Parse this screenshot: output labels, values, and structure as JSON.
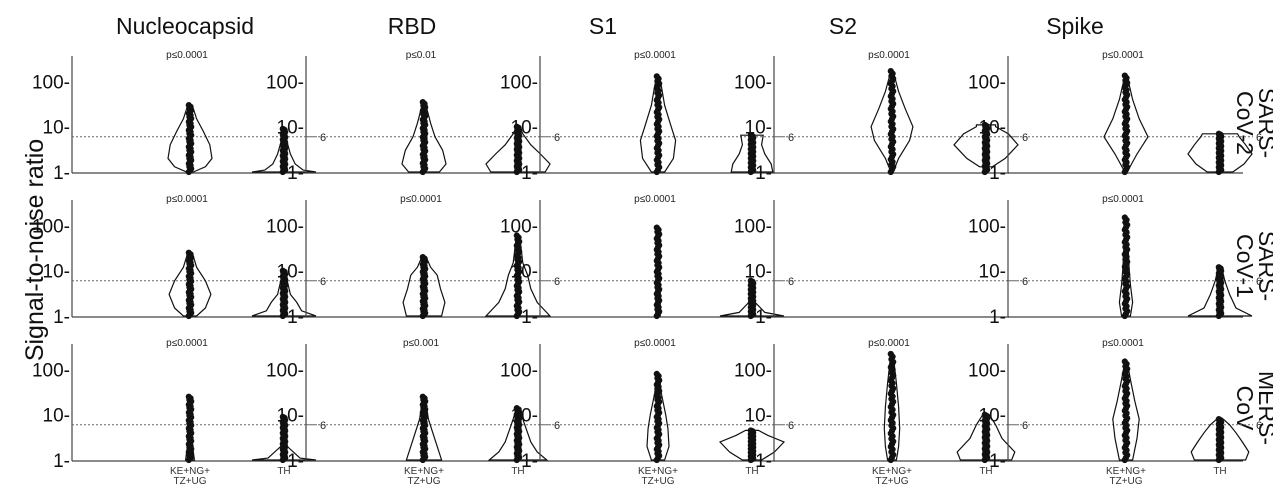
{
  "chart_data": {
    "type": "violin",
    "ylabel": "Signal-to-noise ratio",
    "yscale": "log",
    "yticks": [
      1,
      10,
      100
    ],
    "ytick_labels": [
      "1-",
      "10-",
      "100-"
    ],
    "threshold": 6,
    "threshold_label": "6",
    "categories": [
      "KE+NG+\nTZ+UG",
      "TH"
    ],
    "category_lines": [
      [
        "KE+NG+",
        "TZ+UG"
      ],
      [
        "TH"
      ]
    ],
    "columns": [
      "Nucleocapsid",
      "RBD",
      "S1",
      "S2",
      "Spike"
    ],
    "rows": [
      {
        "lines": [
          "SARS-",
          "CoV-2"
        ]
      },
      {
        "lines": [
          "SARS-",
          "CoV-1"
        ]
      },
      {
        "lines": [
          "MERS-",
          "CoV"
        ]
      }
    ],
    "panels": [
      [
        {
          "p": "p≤0.0001",
          "groups": [
            {
              "max": 30,
              "widths": [
                [
                  1,
                  0.15
                ],
                [
                  1.3,
                  0.7
                ],
                [
                  2,
                  1
                ],
                [
                  4,
                  0.9
                ],
                [
                  8,
                  0.6
                ],
                [
                  15,
                  0.3
                ],
                [
                  30,
                  0.1
                ]
              ]
            },
            {
              "max": 9,
              "widths": [
                [
                  1,
                  1
                ],
                [
                  1.1,
                  0.6
                ],
                [
                  1.5,
                  0.35
                ],
                [
                  2.5,
                  0.2
                ],
                [
                  5,
                  0.08
                ],
                [
                  9,
                  0.05
                ]
              ]
            }
          ]
        },
        {
          "p": "p≤0.01",
          "groups": [
            {
              "max": 35,
              "widths": [
                [
                  1,
                  0.7
                ],
                [
                  1.5,
                  1
                ],
                [
                  3,
                  0.85
                ],
                [
                  6,
                  0.5
                ],
                [
                  12,
                  0.3
                ],
                [
                  35,
                  0.05
                ]
              ]
            },
            {
              "max": 10,
              "widths": [
                [
                  1,
                  0.85
                ],
                [
                  1.5,
                  1
                ],
                [
                  2.5,
                  0.7
                ],
                [
                  4,
                  0.4
                ],
                [
                  7,
                  0.15
                ],
                [
                  10,
                  0.05
                ]
              ]
            }
          ]
        },
        {
          "p": "p≤0.0001",
          "groups": [
            {
              "max": 130,
              "widths": [
                [
                  1,
                  0.3
                ],
                [
                  2,
                  0.7
                ],
                [
                  5,
                  0.8
                ],
                [
                  10,
                  0.6
                ],
                [
                  30,
                  0.3
                ],
                [
                  80,
                  0.15
                ],
                [
                  130,
                  0.05
                ]
              ]
            },
            {
              "max": 6.5,
              "widths": [
                [
                  1,
                  0.65
                ],
                [
                  1.5,
                  0.6
                ],
                [
                  2.5,
                  0.4
                ],
                [
                  4,
                  0.3
                ],
                [
                  6.5,
                  0.35
                ]
              ]
            }
          ]
        },
        {
          "p": "p≤0.0001",
          "groups": [
            {
              "max": 170,
              "widths": [
                [
                  1,
                  0.05
                ],
                [
                  2,
                  0.3
                ],
                [
                  5,
                  0.8
                ],
                [
                  10,
                  0.95
                ],
                [
                  25,
                  0.6
                ],
                [
                  60,
                  0.3
                ],
                [
                  170,
                  0.05
                ]
              ]
            },
            {
              "max": 11,
              "widths": [
                [
                  1.3,
                  0.2
                ],
                [
                  2,
                  0.6
                ],
                [
                  4,
                  1
                ],
                [
                  7,
                  0.7
                ],
                [
                  10,
                  0.3
                ],
                [
                  11,
                  0.3
                ]
              ]
            }
          ]
        },
        {
          "p": "p≤0.0001",
          "groups": [
            {
              "max": 135,
              "widths": [
                [
                  1,
                  0.05
                ],
                [
                  2.5,
                  0.5
                ],
                [
                  6,
                  1
                ],
                [
                  15,
                  0.6
                ],
                [
                  40,
                  0.3
                ],
                [
                  135,
                  0.05
                ]
              ]
            },
            {
              "max": 7,
              "widths": [
                [
                  1,
                  0.4
                ],
                [
                  1.5,
                  0.75
                ],
                [
                  2.5,
                  1
                ],
                [
                  4,
                  0.8
                ],
                [
                  6,
                  0.6
                ],
                [
                  7,
                  0.55
                ]
              ]
            }
          ]
        }
      ],
      [
        {
          "p": "p≤0.0001",
          "groups": [
            {
              "max": 25,
              "widths": [
                [
                  1,
                  0.3
                ],
                [
                  1.5,
                  0.7
                ],
                [
                  3,
                  0.95
                ],
                [
                  6,
                  0.7
                ],
                [
                  12,
                  0.3
                ],
                [
                  25,
                  0.1
                ]
              ]
            },
            {
              "max": 10,
              "widths": [
                [
                  1,
                  1
                ],
                [
                  1.3,
                  0.55
                ],
                [
                  2,
                  0.4
                ],
                [
                  3,
                  0.2
                ],
                [
                  6,
                  0.1
                ],
                [
                  10,
                  0.05
                ]
              ]
            }
          ]
        },
        {
          "p": "p≤0.0001",
          "groups": [
            {
              "max": 20,
              "widths": [
                [
                  1,
                  0.8
                ],
                [
                  2,
                  0.95
                ],
                [
                  4,
                  0.75
                ],
                [
                  8,
                  0.6
                ],
                [
                  12,
                  0.3
                ],
                [
                  20,
                  0.1
                ]
              ]
            },
            {
              "max": 60,
              "widths": [
                [
                  1,
                  1
                ],
                [
                  2,
                  0.6
                ],
                [
                  4,
                  0.4
                ],
                [
                  8,
                  0.3
                ],
                [
                  15,
                  0.15
                ],
                [
                  30,
                  0.1
                ],
                [
                  60,
                  0.05
                ]
              ]
            }
          ]
        },
        {
          "p": "p≤0.0001",
          "groups": [
            {
              "max": 90,
              "widths": [
                [
                  1,
                  0.1
                ],
                [
                  3,
                  0.1
                ],
                [
                  10,
                  0.08
                ],
                [
                  30,
                  0.05
                ],
                [
                  90,
                  0.03
                ]
              ]
            },
            {
              "max": 6,
              "widths": [
                [
                  1,
                  1
                ],
                [
                  1.2,
                  0.4
                ],
                [
                  2,
                  0.1
                ],
                [
                  6,
                  0.05
                ]
              ]
            }
          ]
        },
        {
          "p": "",
          "groups": []
        },
        {
          "p": "p≤0.0001",
          "groups": [
            {
              "max": 150,
              "widths": [
                [
                  1,
                  0.2
                ],
                [
                  2,
                  0.3
                ],
                [
                  5,
                  0.2
                ],
                [
                  10,
                  0.15
                ],
                [
                  40,
                  0.08
                ],
                [
                  150,
                  0.03
                ]
              ]
            },
            {
              "max": 12,
              "widths": [
                [
                  1,
                  1
                ],
                [
                  1.5,
                  0.5
                ],
                [
                  3,
                  0.3
                ],
                [
                  6,
                  0.15
                ],
                [
                  12,
                  0.05
                ]
              ]
            }
          ]
        }
      ],
      [
        {
          "p": "p≤0.0001",
          "groups": [
            {
              "max": 25,
              "widths": [
                [
                  1,
                  0.2
                ],
                [
                  2,
                  0.12
                ],
                [
                  5,
                  0.08
                ],
                [
                  10,
                  0.06
                ],
                [
                  25,
                  0.04
                ]
              ]
            },
            {
              "max": 9,
              "widths": [
                [
                  1,
                  1
                ],
                [
                  1.1,
                  0.5
                ],
                [
                  2,
                  0.1
                ],
                [
                  9,
                  0.03
                ]
              ]
            }
          ]
        },
        {
          "p": "p≤0.001",
          "groups": [
            {
              "max": 25,
              "widths": [
                [
                  1,
                  0.8
                ],
                [
                  2,
                  0.6
                ],
                [
                  4,
                  0.4
                ],
                [
                  8,
                  0.2
                ],
                [
                  25,
                  0.05
                ]
              ]
            },
            {
              "max": 14,
              "widths": [
                [
                  1,
                  0.9
                ],
                [
                  1.5,
                  0.6
                ],
                [
                  2.5,
                  0.4
                ],
                [
                  4,
                  0.3
                ],
                [
                  8,
                  0.15
                ],
                [
                  14,
                  0.05
                ]
              ]
            }
          ]
        },
        {
          "p": "p≤0.0001",
          "groups": [
            {
              "max": 80,
              "widths": [
                [
                  1,
                  0.3
                ],
                [
                  2,
                  0.5
                ],
                [
                  5,
                  0.45
                ],
                [
                  10,
                  0.35
                ],
                [
                  30,
                  0.15
                ],
                [
                  80,
                  0.05
                ]
              ]
            },
            {
              "max": 4.5,
              "widths": [
                [
                  1,
                  0.3
                ],
                [
                  1.5,
                  0.7
                ],
                [
                  2.5,
                  1
                ],
                [
                  3.5,
                  0.5
                ],
                [
                  4.5,
                  0.2
                ]
              ]
            }
          ]
        },
        {
          "p": "p≤0.0001",
          "groups": [
            {
              "max": 220,
              "widths": [
                [
                  1,
                  0.2
                ],
                [
                  2,
                  0.3
                ],
                [
                  5,
                  0.35
                ],
                [
                  15,
                  0.3
                ],
                [
                  50,
                  0.2
                ],
                [
                  220,
                  0.05
                ]
              ]
            },
            {
              "max": 10,
              "widths": [
                [
                  1,
                  0.8
                ],
                [
                  1.5,
                  0.9
                ],
                [
                  3,
                  0.5
                ],
                [
                  6,
                  0.3
                ],
                [
                  10,
                  0.1
                ]
              ]
            }
          ]
        },
        {
          "p": "p≤0.0001",
          "groups": [
            {
              "max": 150,
              "widths": [
                [
                  1,
                  0.3
                ],
                [
                  3,
                  0.5
                ],
                [
                  8,
                  0.6
                ],
                [
                  20,
                  0.4
                ],
                [
                  60,
                  0.2
                ],
                [
                  150,
                  0.05
                ]
              ]
            },
            {
              "max": 8,
              "widths": [
                [
                  1,
                  0.8
                ],
                [
                  1.5,
                  0.9
                ],
                [
                  2.5,
                  0.7
                ],
                [
                  4,
                  0.5
                ],
                [
                  6,
                  0.3
                ],
                [
                  8,
                  0.1
                ]
              ]
            }
          ]
        }
      ]
    ]
  }
}
